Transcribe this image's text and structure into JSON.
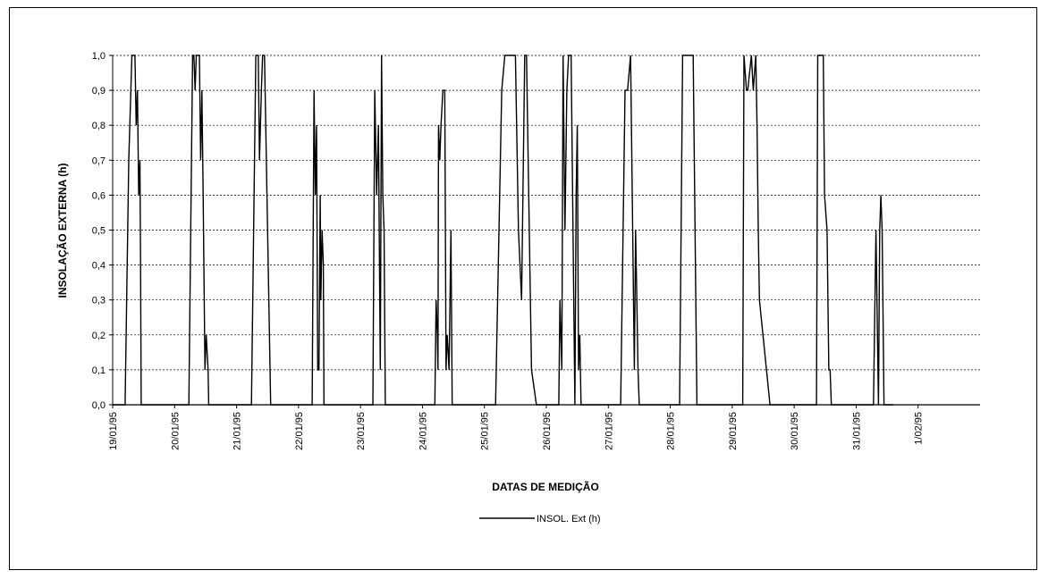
{
  "chart_data": {
    "type": "line",
    "xlabel": "DATAS DE MEDIÇÃO",
    "ylabel": "INSOLAÇÃO EXTERNA (h)",
    "ylim": [
      0,
      1
    ],
    "yticks": [
      "0,0",
      "0,1",
      "0,2",
      "0,3",
      "0,4",
      "0,5",
      "0,6",
      "0,7",
      "0,8",
      "0,9",
      "1,0"
    ],
    "xlim": [
      0,
      14
    ],
    "x_tick_labels": [
      "19/01/95",
      "20/01/95",
      "21/01/95",
      "22/01/95",
      "23/01/95",
      "24/01/95",
      "25/01/95",
      "26/01/95",
      "27/01/95",
      "28/01/95",
      "29/01/95",
      "30/01/95",
      "31/01/95",
      "1/02/95"
    ],
    "grid": true,
    "legend_position": "bottom-center",
    "series": [
      {
        "name": "INSOL. Ext (h)",
        "color": "#000000",
        "x": [
          0,
          0.2,
          0.26,
          0.31,
          0.36,
          0.38,
          0.4,
          0.42,
          0.44,
          0.45,
          0.46,
          0.47,
          0.49,
          0.51,
          0.57,
          1.17,
          1.23,
          1.29,
          1.31,
          1.33,
          1.35,
          1.38,
          1.4,
          1.42,
          1.44,
          1.46,
          1.49,
          1.51,
          1.54,
          1.55,
          1.57,
          1.6,
          2.17,
          2.24,
          2.31,
          2.33,
          2.35,
          2.37,
          2.4,
          2.42,
          2.45,
          2.55,
          3.22,
          3.25,
          3.27,
          3.29,
          3.31,
          3.33,
          3.35,
          3.36,
          3.38,
          3.4,
          3.41,
          3.44,
          4.2,
          4.23,
          4.26,
          4.29,
          4.32,
          4.34,
          4.36,
          4.38,
          4.4,
          5.2,
          5.22,
          5.24,
          5.25,
          5.26,
          5.28,
          5.3,
          5.33,
          5.36,
          5.38,
          5.4,
          5.43,
          5.46,
          5.48,
          5.51,
          5.56,
          6.18,
          6.28,
          6.33,
          6.5,
          6.55,
          6.6,
          6.65,
          6.68,
          6.76,
          6.84,
          7.2,
          7.22,
          7.25,
          7.27,
          7.3,
          7.33,
          7.36,
          7.4,
          7.46,
          7.48,
          7.5,
          7.52,
          7.54,
          7.56,
          7.58,
          8.2,
          8.27,
          8.31,
          8.36,
          8.42,
          8.44,
          8.46,
          8.48,
          8.5,
          8.52,
          9.15,
          9.2,
          9.37,
          9.43,
          9.55,
          10.17,
          10.19,
          10.23,
          10.25,
          10.31,
          10.34,
          10.38,
          10.4,
          10.42,
          10.44,
          10.61,
          11.36,
          11.38,
          11.47,
          11.49,
          11.53,
          11.56,
          11.58,
          11.6,
          11.62,
          11.68,
          12.28,
          12.32,
          12.36,
          12.38,
          12.4,
          12.42,
          12.45,
          12.48,
          12.54,
          12.58,
          12.6
        ],
        "y": [
          0,
          0,
          0.7,
          1,
          1,
          0.8,
          0.9,
          0.6,
          0.7,
          0.4,
          0,
          0,
          0,
          0,
          0,
          0,
          0,
          1,
          1,
          0.9,
          1,
          1,
          1,
          0.7,
          0.9,
          0.6,
          0.1,
          0.2,
          0.1,
          0,
          0,
          0,
          0,
          0,
          1,
          1,
          1,
          0.7,
          0.9,
          1,
          1,
          0,
          0,
          0.9,
          0.6,
          0.8,
          0.1,
          0.1,
          0.6,
          0.3,
          0.5,
          0.4,
          0,
          0,
          0,
          0.9,
          0.6,
          0.8,
          0.1,
          1,
          0.6,
          0.5,
          0,
          0,
          0.3,
          0.2,
          0.1,
          0.8,
          0.7,
          0.8,
          0.9,
          0.9,
          0.1,
          0.2,
          0.1,
          0.5,
          0,
          0,
          0,
          0,
          0.9,
          1,
          1,
          0.5,
          0.3,
          1,
          1,
          0.1,
          0,
          0,
          0.3,
          0.1,
          1,
          0.5,
          0.9,
          1,
          1,
          0,
          0.6,
          0.8,
          0.1,
          0.2,
          0,
          0,
          0,
          0.9,
          0.9,
          1,
          0.1,
          0.5,
          0.3,
          0.1,
          0,
          0,
          0,
          1,
          1,
          0,
          0,
          0,
          1,
          0.9,
          0.9,
          1,
          0.9,
          1,
          0.8,
          0.5,
          0.3,
          0,
          0,
          1,
          1,
          0.6,
          0.5,
          0.1,
          0.1,
          0,
          0,
          0,
          0,
          0.5,
          0,
          0.5,
          0.6,
          0.5,
          0,
          0,
          0,
          0,
          0
        ]
      }
    ]
  }
}
